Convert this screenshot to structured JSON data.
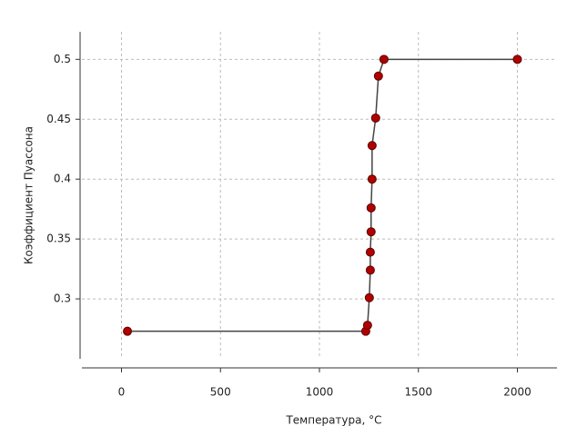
{
  "chart_data": {
    "type": "line",
    "x_label": "Температура, °C",
    "y_label": "Коэффициент Пуассона",
    "x": [
      30,
      1234,
      1243,
      1252,
      1257,
      1257,
      1261,
      1261,
      1266,
      1266,
      1284,
      1298,
      1326,
      2000
    ],
    "series": [
      {
        "color": "#b00000",
        "line_color": "#444444",
        "values": [
          0.273,
          0.273,
          0.278,
          0.301,
          0.324,
          0.339,
          0.356,
          0.376,
          0.4,
          0.428,
          0.451,
          0.486,
          0.5,
          0.5
        ]
      }
    ],
    "xlim": [
      -200,
      2200
    ],
    "xticks": [
      0,
      500,
      1000,
      1500,
      2000
    ],
    "ylim": [
      0.25,
      0.523
    ],
    "yticks": [
      0.3,
      0.35,
      0.4,
      0.45,
      0.5
    ],
    "grid": true
  }
}
